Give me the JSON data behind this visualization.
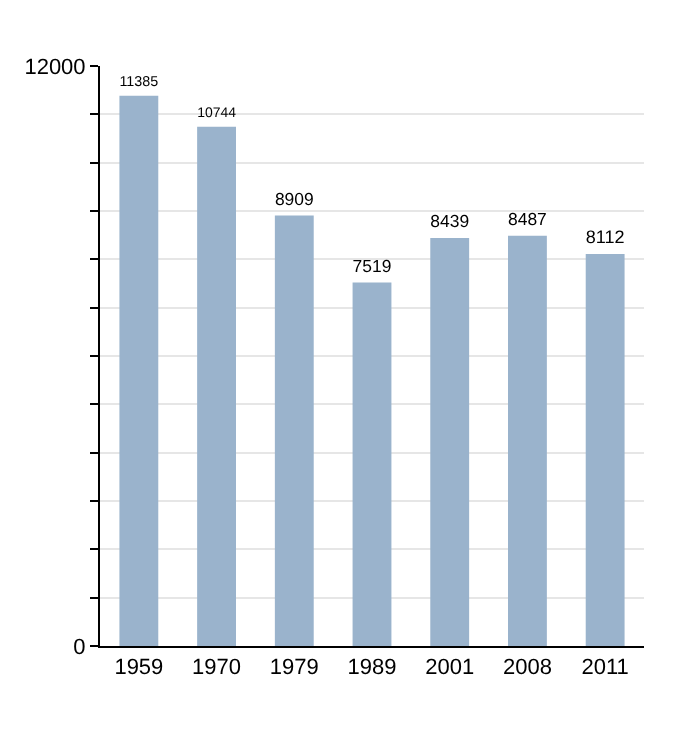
{
  "chart_data": {
    "type": "bar",
    "categories": [
      "1959",
      "1970",
      "1979",
      "1989",
      "2001",
      "2008",
      "2011"
    ],
    "values": [
      11385,
      10744,
      8909,
      7519,
      8439,
      8487,
      8112
    ],
    "color": "#9ab3cc",
    "ylim": [
      0,
      12000
    ],
    "yticks": [
      0,
      {
        "value": 1000,
        "label": null
      },
      {
        "value": 2000,
        "label": null
      },
      {
        "value": 3000,
        "label": null
      },
      {
        "value": 4000,
        "label": null
      },
      {
        "value": 5000,
        "label": null
      },
      {
        "value": 6000,
        "label": null
      },
      {
        "value": 7000,
        "label": null
      },
      {
        "value": 8000,
        "label": null
      },
      {
        "value": 9000,
        "label": null
      },
      {
        "value": 10000,
        "label": null
      },
      {
        "value": 11000,
        "label": null
      },
      12000
    ],
    "grid": "y",
    "data_labels": true
  }
}
